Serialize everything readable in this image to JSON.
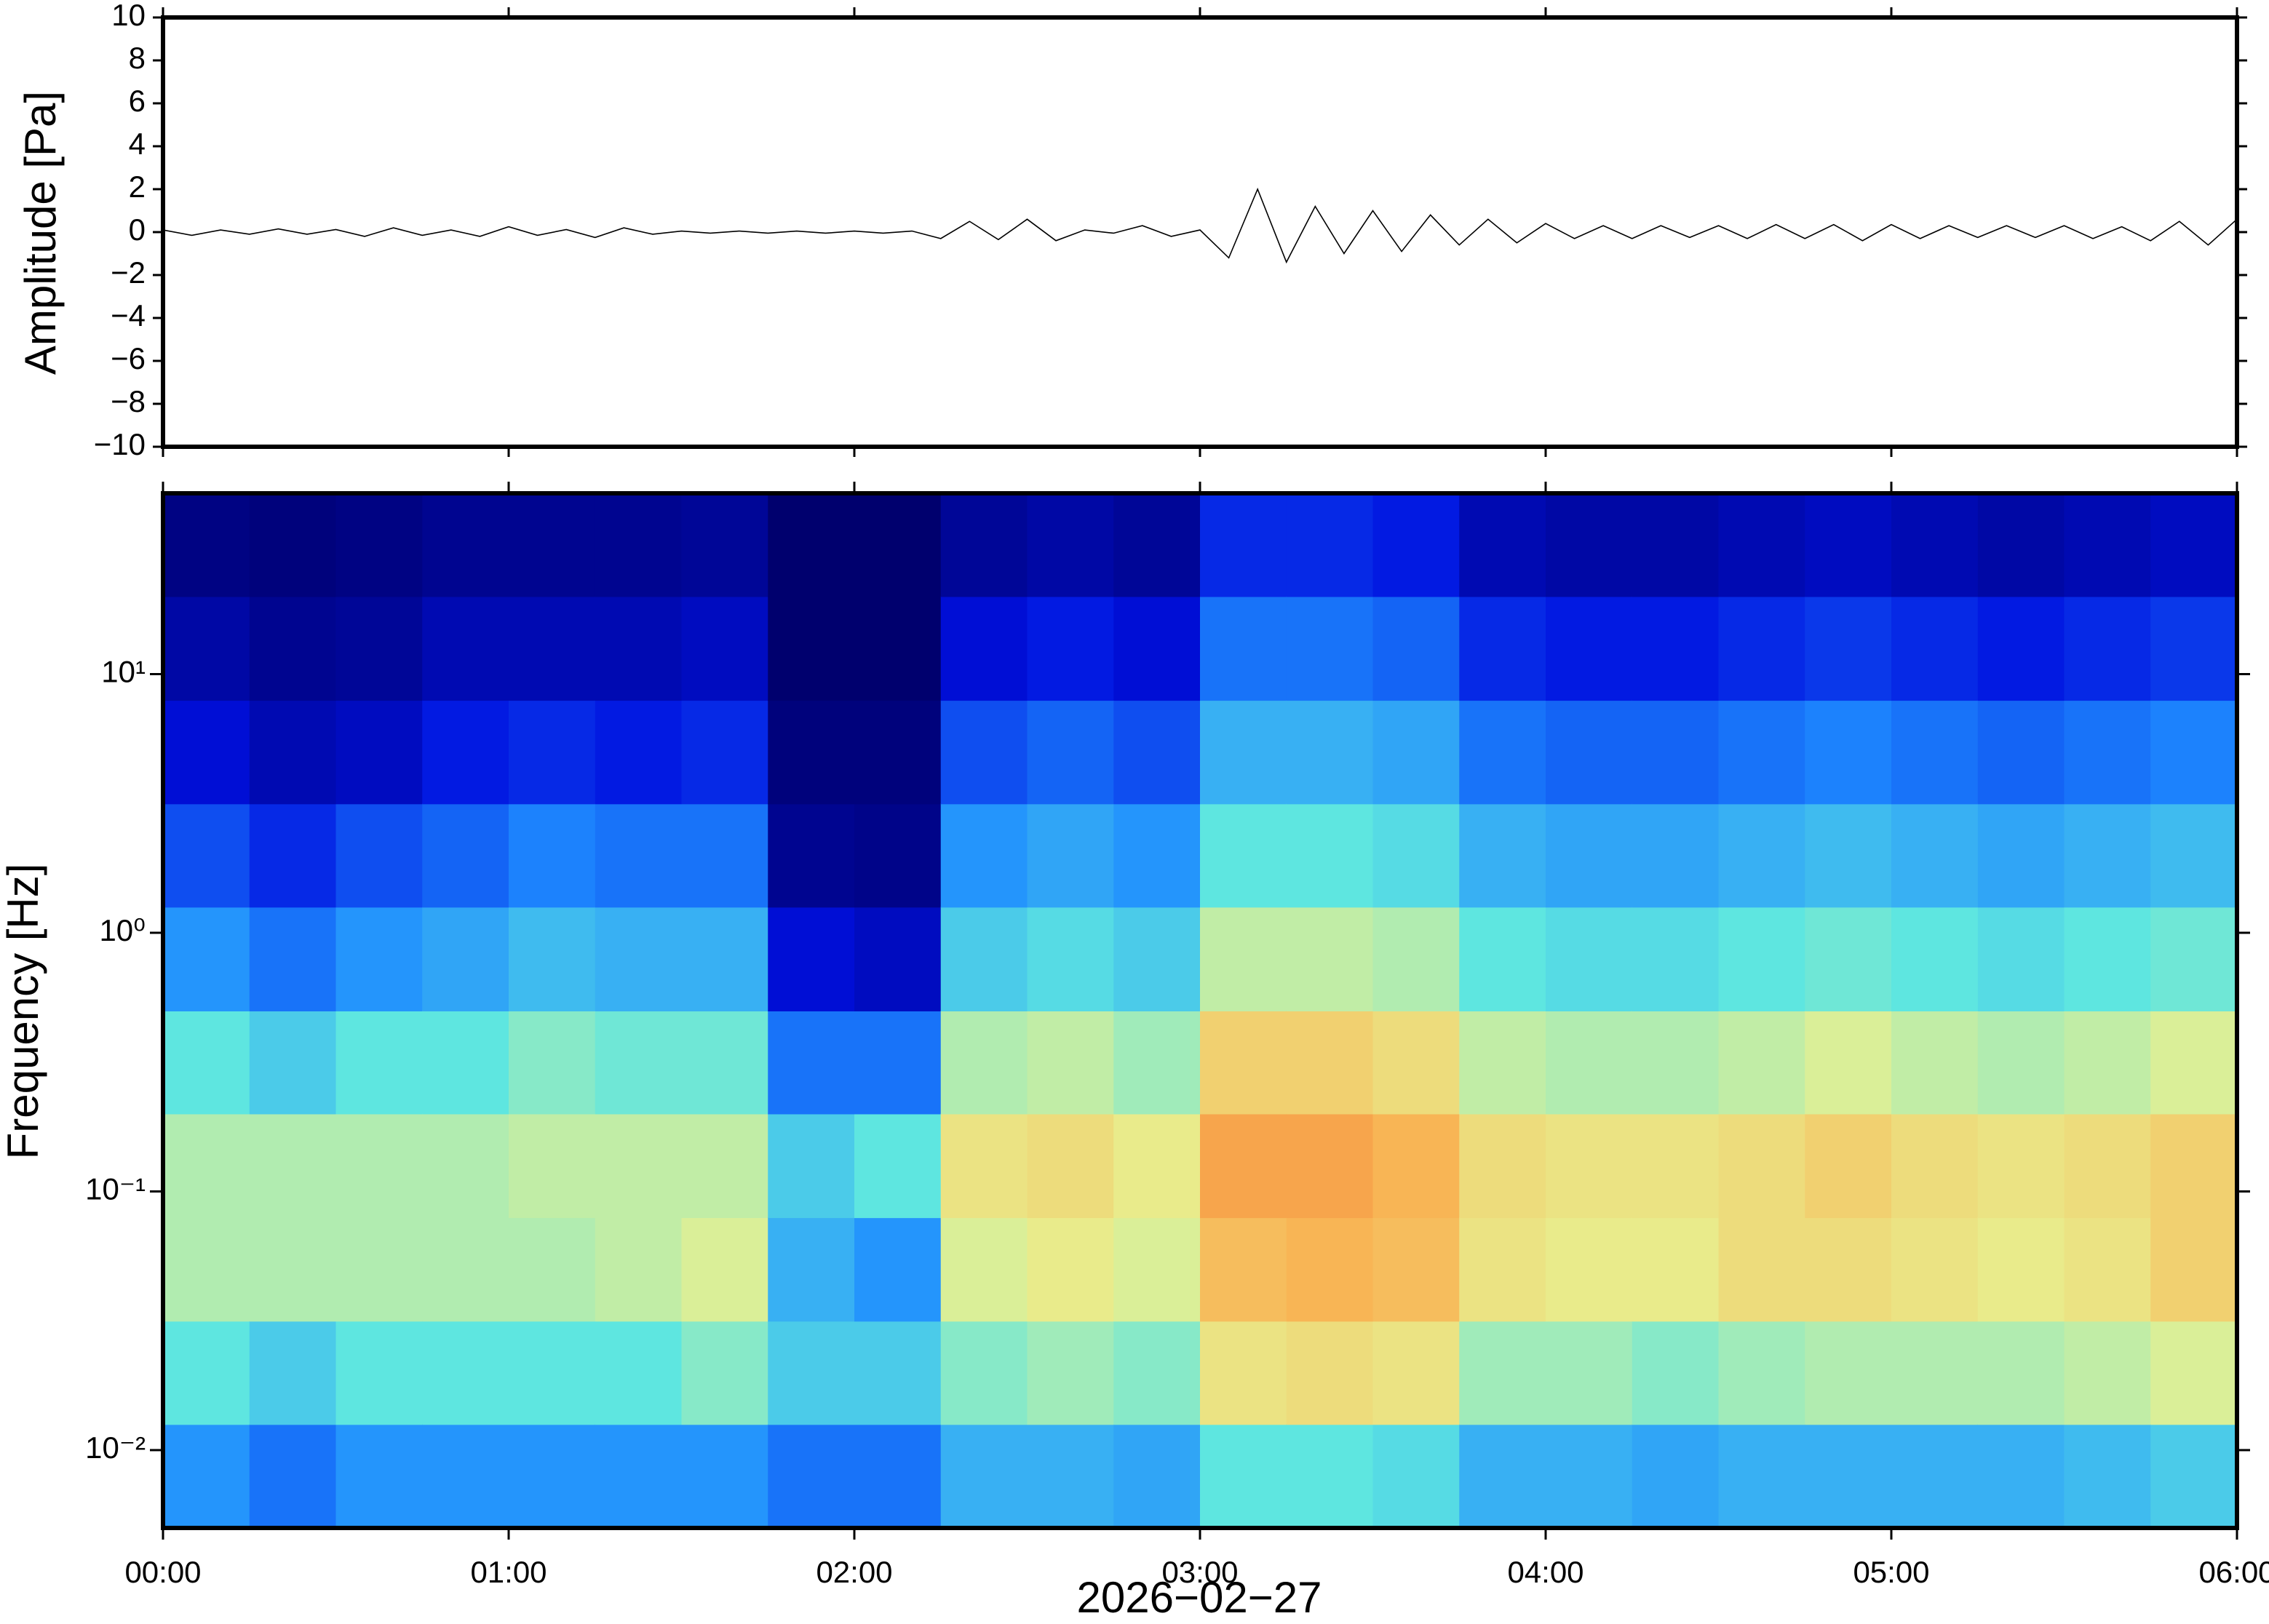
{
  "chart_data": [
    {
      "type": "line",
      "ylabel": "Amplitude [Pa]",
      "color": "#000000",
      "x": [
        0,
        5,
        10,
        15,
        20,
        25,
        30,
        35,
        40,
        45,
        50,
        55,
        60,
        65,
        70,
        75,
        80,
        85,
        90,
        95,
        100,
        105,
        110,
        115,
        120,
        125,
        130,
        135,
        140,
        145,
        150,
        155,
        160,
        165,
        170,
        175,
        180,
        185,
        190,
        195,
        200,
        205,
        210,
        215,
        220,
        225,
        230,
        235,
        240,
        245,
        250,
        255,
        260,
        265,
        270,
        275,
        280,
        285,
        290,
        295,
        300,
        305,
        310,
        315,
        320,
        325,
        330,
        335,
        340,
        345,
        350,
        355,
        360
      ],
      "values": [
        0.1,
        -0.15,
        0.1,
        -0.1,
        0.15,
        -0.1,
        0.12,
        -0.2,
        0.2,
        -0.15,
        0.1,
        -0.2,
        0.25,
        -0.15,
        0.12,
        -0.25,
        0.2,
        -0.1,
        0.05,
        -0.05,
        0.05,
        -0.05,
        0.05,
        -0.05,
        0.05,
        -0.05,
        0.05,
        -0.3,
        0.5,
        -0.35,
        0.6,
        -0.4,
        0.1,
        -0.05,
        0.3,
        -0.2,
        0.1,
        -1.2,
        2.0,
        -1.4,
        1.2,
        -1.0,
        1.0,
        -0.9,
        0.8,
        -0.6,
        0.6,
        -0.5,
        0.4,
        -0.3,
        0.3,
        -0.3,
        0.3,
        -0.25,
        0.3,
        -0.3,
        0.35,
        -0.3,
        0.35,
        -0.4,
        0.35,
        -0.3,
        0.3,
        -0.25,
        0.3,
        -0.25,
        0.3,
        -0.3,
        0.25,
        -0.4,
        0.5,
        -0.6,
        0.6
      ],
      "xlim": [
        0,
        360
      ],
      "ylim": [
        -10,
        10
      ],
      "yticks": [
        {
          "value": -10,
          "label": "−10"
        },
        {
          "value": -8,
          "label": "−8"
        },
        {
          "value": -6,
          "label": "−6"
        },
        {
          "value": -4,
          "label": "−4"
        },
        {
          "value": -2,
          "label": "−2"
        },
        0,
        2,
        4,
        6,
        8,
        10
      ]
    },
    {
      "type": "heatmap",
      "ylabel": "Frequency [Hz]",
      "xlabel": "2026−02−27",
      "log_y": true,
      "colormap": [
        "#00006e",
        "#0010e0",
        "#1e8cff",
        "#5ee6e0",
        "#e8f090",
        "#f9b050",
        "#e04028"
      ],
      "xlim": [
        0,
        360
      ],
      "ylim": [
        0.005,
        50
      ],
      "xticks": [
        {
          "value": 0,
          "label": "00:00"
        },
        {
          "value": 60,
          "label": "01:00"
        },
        {
          "value": 120,
          "label": "02:00"
        },
        {
          "value": 180,
          "label": "03:00"
        },
        {
          "value": 240,
          "label": "04:00"
        },
        {
          "value": 300,
          "label": "05:00"
        },
        {
          "value": 360,
          "label": "06:00"
        }
      ],
      "yticks": [
        {
          "value": 0.01,
          "label": "10⁻²"
        },
        {
          "value": 0.1,
          "label": "10⁻¹"
        },
        {
          "value": 1,
          "label": "10⁰"
        },
        {
          "value": 10,
          "label": "10¹"
        }
      ],
      "x_bins": [
        0,
        15,
        30,
        45,
        60,
        75,
        90,
        105,
        120,
        135,
        150,
        165,
        180,
        195,
        210,
        225,
        240,
        255,
        270,
        285,
        300,
        315,
        330,
        345,
        360
      ],
      "y_bins": [
        0.005,
        0.0126,
        0.0316,
        0.0794,
        0.2,
        0.5,
        1.26,
        3.16,
        7.94,
        20,
        50
      ],
      "z": [
        [
          0.35,
          0.5,
          0.6,
          0.6,
          0.5,
          0.35,
          0.25,
          0.15,
          0.08,
          0.03
        ],
        [
          0.3,
          0.45,
          0.6,
          0.6,
          0.45,
          0.3,
          0.2,
          0.1,
          0.05,
          0.02
        ],
        [
          0.35,
          0.5,
          0.6,
          0.6,
          0.5,
          0.35,
          0.25,
          0.12,
          0.06,
          0.03
        ],
        [
          0.35,
          0.5,
          0.6,
          0.6,
          0.5,
          0.38,
          0.28,
          0.18,
          0.1,
          0.05
        ],
        [
          0.35,
          0.5,
          0.6,
          0.62,
          0.55,
          0.42,
          0.32,
          0.2,
          0.1,
          0.05
        ],
        [
          0.35,
          0.5,
          0.62,
          0.62,
          0.52,
          0.4,
          0.3,
          0.18,
          0.1,
          0.05
        ],
        [
          0.35,
          0.55,
          0.65,
          0.62,
          0.52,
          0.4,
          0.3,
          0.2,
          0.12,
          0.06
        ],
        [
          0.3,
          0.45,
          0.4,
          0.45,
          0.3,
          0.15,
          0.05,
          0.02,
          0.0,
          0.0
        ],
        [
          0.3,
          0.45,
          0.35,
          0.5,
          0.3,
          0.12,
          0.04,
          0.02,
          0.0,
          0.0
        ],
        [
          0.4,
          0.55,
          0.65,
          0.7,
          0.6,
          0.45,
          0.35,
          0.25,
          0.15,
          0.06
        ],
        [
          0.4,
          0.58,
          0.68,
          0.72,
          0.62,
          0.48,
          0.38,
          0.28,
          0.18,
          0.08
        ],
        [
          0.38,
          0.55,
          0.65,
          0.68,
          0.58,
          0.45,
          0.35,
          0.25,
          0.15,
          0.06
        ],
        [
          0.5,
          0.7,
          0.8,
          0.85,
          0.75,
          0.62,
          0.5,
          0.4,
          0.3,
          0.2
        ],
        [
          0.5,
          0.72,
          0.82,
          0.85,
          0.75,
          0.62,
          0.5,
          0.4,
          0.3,
          0.2
        ],
        [
          0.48,
          0.7,
          0.8,
          0.82,
          0.72,
          0.6,
          0.48,
          0.38,
          0.28,
          0.18
        ],
        [
          0.4,
          0.58,
          0.7,
          0.72,
          0.62,
          0.5,
          0.4,
          0.3,
          0.2,
          0.1
        ],
        [
          0.4,
          0.58,
          0.68,
          0.7,
          0.6,
          0.48,
          0.38,
          0.28,
          0.18,
          0.08
        ],
        [
          0.38,
          0.55,
          0.68,
          0.7,
          0.6,
          0.48,
          0.38,
          0.28,
          0.18,
          0.08
        ],
        [
          0.4,
          0.58,
          0.72,
          0.72,
          0.62,
          0.5,
          0.4,
          0.3,
          0.2,
          0.1
        ],
        [
          0.4,
          0.6,
          0.72,
          0.75,
          0.65,
          0.52,
          0.42,
          0.32,
          0.22,
          0.12
        ],
        [
          0.4,
          0.6,
          0.7,
          0.72,
          0.62,
          0.5,
          0.4,
          0.3,
          0.2,
          0.1
        ],
        [
          0.4,
          0.6,
          0.68,
          0.7,
          0.6,
          0.48,
          0.38,
          0.28,
          0.18,
          0.08
        ],
        [
          0.42,
          0.62,
          0.7,
          0.72,
          0.62,
          0.5,
          0.4,
          0.3,
          0.2,
          0.1
        ],
        [
          0.45,
          0.65,
          0.75,
          0.75,
          0.65,
          0.52,
          0.42,
          0.32,
          0.22,
          0.12
        ]
      ]
    }
  ]
}
